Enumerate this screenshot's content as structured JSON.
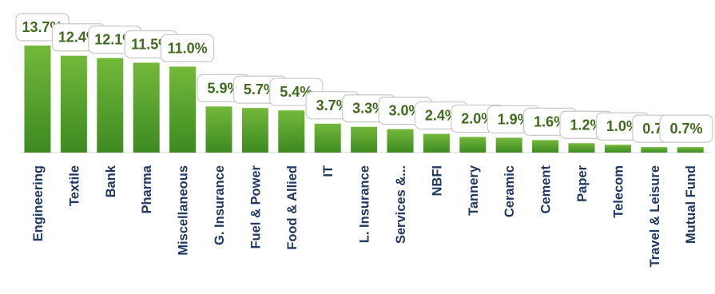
{
  "chart_data": {
    "type": "bar",
    "categories": [
      "Engineering",
      "Textile",
      "Bank",
      "Pharma",
      "Miscellaneous",
      "G. Insurance",
      "Fuel & Power",
      "Food & Allied",
      "IT",
      "L. Insurance",
      "Services &...",
      "NBFI",
      "Tannery",
      "Ceramic",
      "Cement",
      "Paper",
      "Telecom",
      "Travel & Leisure",
      "Mutual Fund"
    ],
    "values": [
      13.7,
      12.4,
      12.1,
      11.5,
      11.0,
      5.9,
      5.7,
      5.4,
      3.7,
      3.3,
      3.0,
      2.4,
      2.0,
      1.9,
      1.6,
      1.2,
      1.0,
      0.7,
      0.7
    ],
    "data_labels": [
      "13.7%",
      "12.4%",
      "12.1%",
      "11.5%",
      "11.0%",
      "5.9%",
      "5.7%",
      "5.4%",
      "3.7%",
      "3.3%",
      "3.0%",
      "2.4%",
      "2.0%",
      "1.9%",
      "1.6%",
      "1.2%",
      "1.0%",
      "0.7%",
      "0.7%"
    ],
    "title": "",
    "xlabel": "",
    "ylabel": "",
    "ylim": [
      0,
      14
    ],
    "grid": false,
    "legend": "none",
    "colors": {
      "bar_top": "#72b83a",
      "bar_bottom": "#3e8a22",
      "label_text": "#3f6b1c",
      "category_text": "#1f3864",
      "label_border": "#c8c8c8"
    }
  }
}
